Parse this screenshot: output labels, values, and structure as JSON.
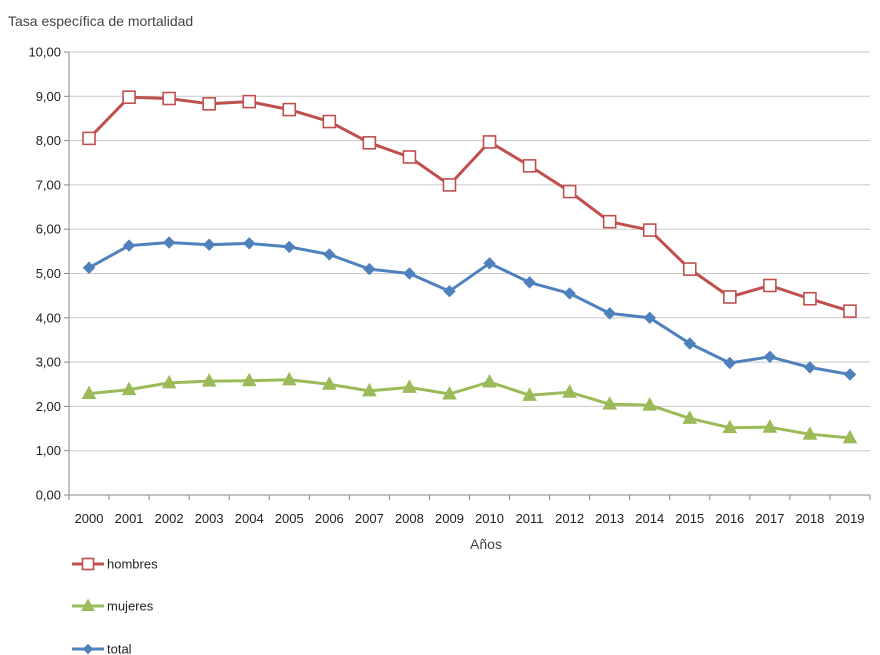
{
  "chart_data": {
    "type": "line",
    "ylabel": "Tasa específica de mortalidad",
    "xlabel": "Años",
    "x": [
      "2000",
      "2001",
      "2002",
      "2003",
      "2004",
      "2005",
      "2006",
      "2007",
      "2008",
      "2009",
      "2010",
      "2011",
      "2012",
      "2013",
      "2014",
      "2015",
      "2016",
      "2017",
      "2018",
      "2019"
    ],
    "ylim": [
      0,
      10
    ],
    "yticks": [
      "0,00",
      "1,00",
      "2,00",
      "3,00",
      "4,00",
      "5,00",
      "6,00",
      "7,00",
      "8,00",
      "9,00",
      "10,00"
    ],
    "grid": true,
    "legend_position": "bottom-left",
    "series": [
      {
        "name": "hombres",
        "color": "#c0504d",
        "marker": "square-open",
        "values": [
          8.05,
          8.98,
          8.95,
          8.83,
          8.88,
          8.7,
          8.43,
          7.95,
          7.63,
          7.0,
          7.97,
          7.43,
          6.85,
          6.17,
          5.98,
          5.1,
          4.47,
          4.73,
          4.43,
          4.15
        ]
      },
      {
        "name": "mujeres",
        "color": "#9bbb59",
        "marker": "triangle",
        "values": [
          2.29,
          2.38,
          2.53,
          2.57,
          2.58,
          2.6,
          2.5,
          2.35,
          2.43,
          2.28,
          2.55,
          2.25,
          2.32,
          2.05,
          2.03,
          1.73,
          1.52,
          1.53,
          1.37,
          1.29
        ]
      },
      {
        "name": "total",
        "color": "#4f81bd",
        "marker": "diamond",
        "values": [
          5.13,
          5.63,
          5.7,
          5.65,
          5.68,
          5.6,
          5.43,
          5.1,
          5.0,
          4.6,
          5.23,
          4.8,
          4.55,
          4.1,
          4.0,
          3.42,
          2.98,
          3.12,
          2.88,
          2.72
        ]
      }
    ]
  }
}
